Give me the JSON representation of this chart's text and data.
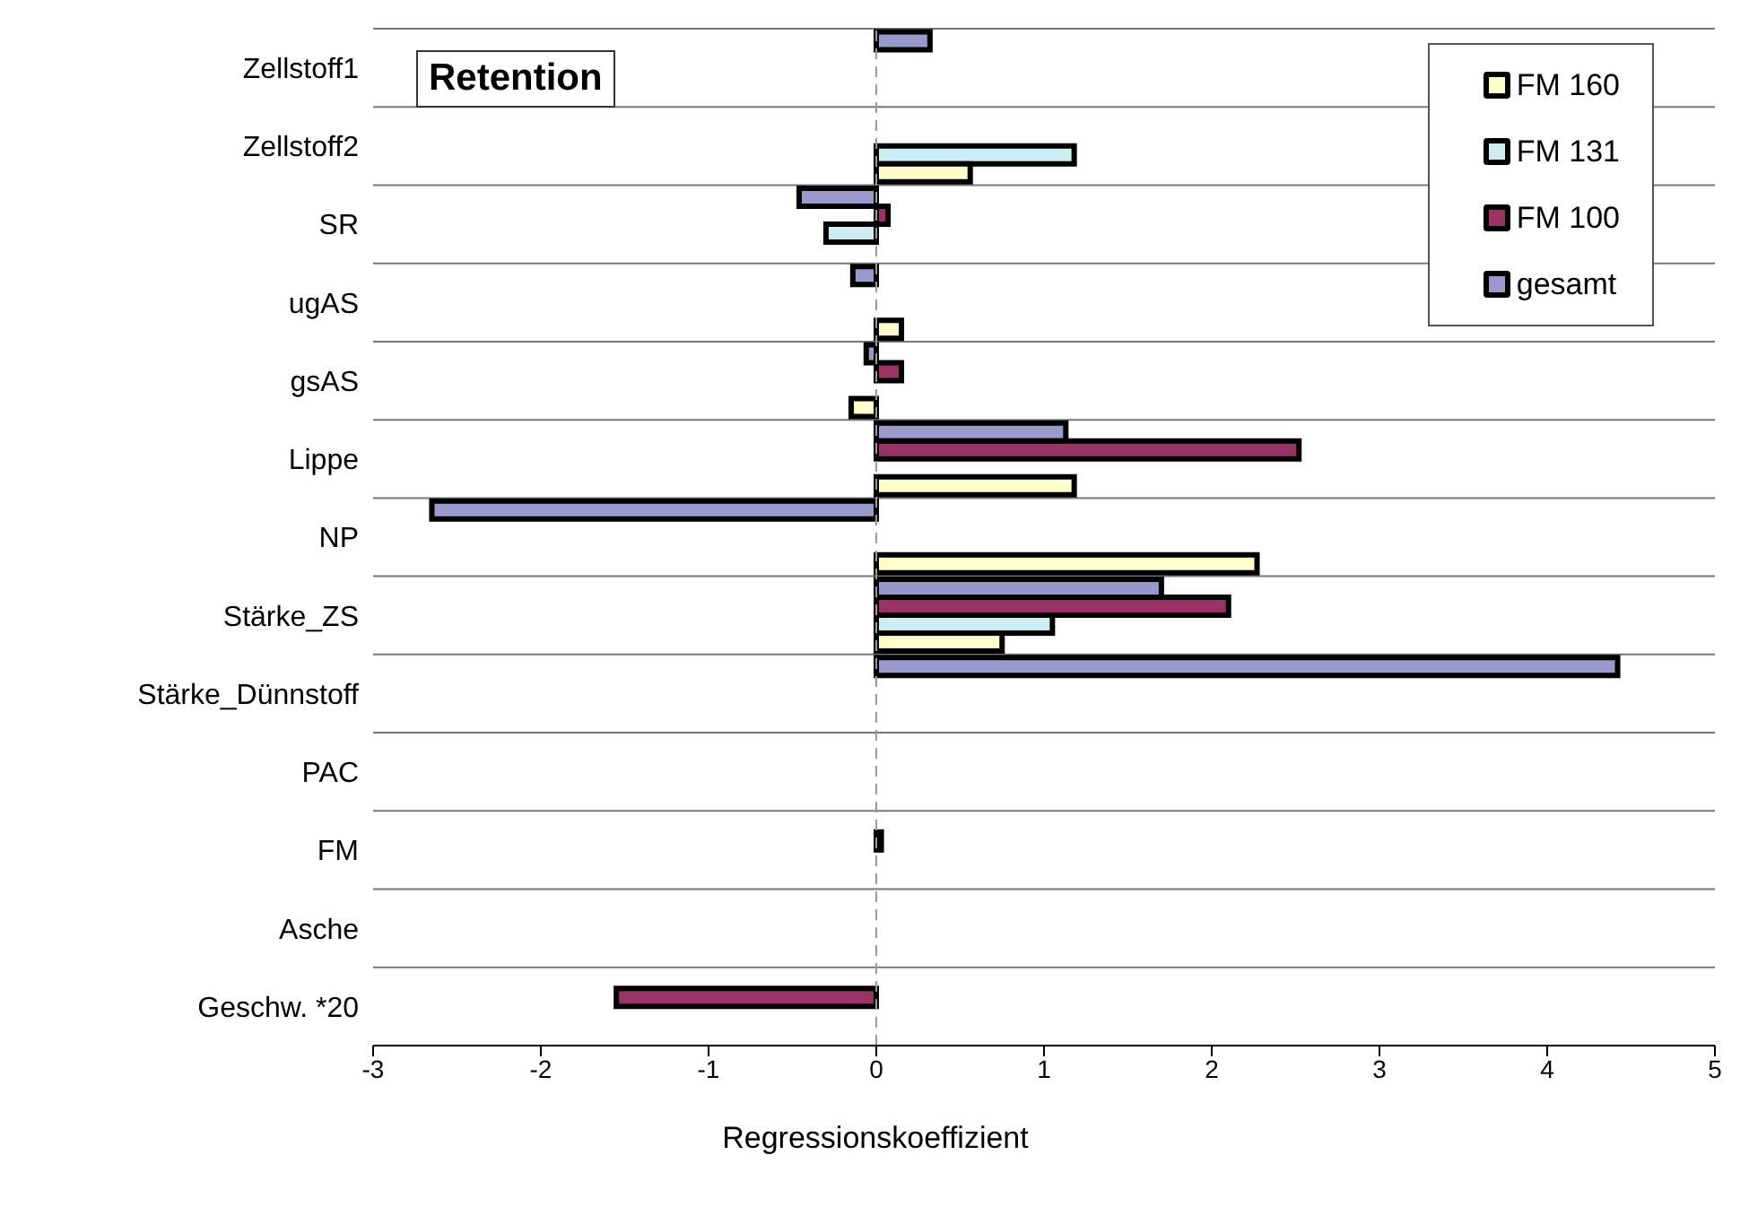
{
  "chart_data": {
    "type": "bar",
    "orientation": "horizontal",
    "title": "Retention",
    "xlabel": "Regressionskoeffizient",
    "categories": [
      "Zellstoff1",
      "Zellstoff2",
      "SR",
      "ugAS",
      "gsAS",
      "Lippe",
      "NP",
      "Stärke_ZS",
      "Stärke_Dünnstoff",
      "PAC",
      "FM",
      "Asche",
      "Geschw. *20"
    ],
    "series": [
      {
        "name": "FM 160",
        "color": "#ffffcc",
        "values": [
          0,
          0.56,
          0,
          0.15,
          -0.15,
          1.18,
          2.27,
          0.75,
          0,
          0,
          0,
          0,
          0
        ]
      },
      {
        "name": "FM 131",
        "color": "#cceef2",
        "values": [
          0,
          1.18,
          -0.3,
          0,
          0,
          0,
          0,
          1.05,
          0,
          0,
          0,
          0,
          0
        ]
      },
      {
        "name": "FM 100",
        "color": "#993366",
        "values": [
          0,
          0,
          0.07,
          0,
          0.15,
          2.52,
          0,
          2.1,
          0,
          0,
          0.03,
          0,
          -1.55
        ]
      },
      {
        "name": "gesamt",
        "color": "#9999cc",
        "values": [
          0.32,
          0,
          -0.46,
          -0.14,
          -0.06,
          1.13,
          -2.65,
          1.7,
          4.42,
          0,
          0,
          0,
          0
        ]
      }
    ],
    "xlim": [
      -3,
      5
    ],
    "xticks": [
      -3,
      -2,
      -1,
      0,
      1,
      2,
      3,
      4,
      5
    ],
    "grid": "y",
    "legend": "top right",
    "ref_lines": [
      {
        "axis": "x",
        "value": 0,
        "color": "#999999",
        "line_style": "dashed"
      }
    ]
  }
}
